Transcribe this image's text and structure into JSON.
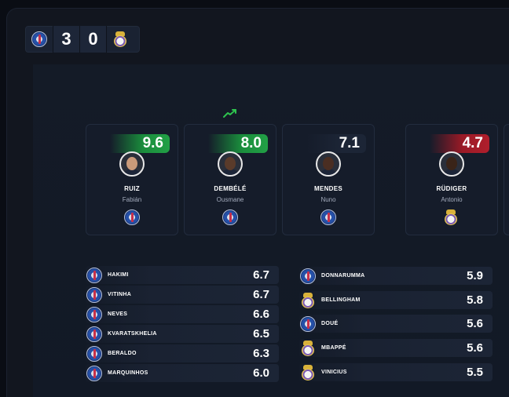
{
  "scoreboard": {
    "home_team": "psg-crest",
    "home_score": "3",
    "away_score": "0",
    "away_team": "real-madrid-crest"
  },
  "highlight_cards": [
    {
      "rating": "9.6",
      "level": "high",
      "last_name": "RUIZ",
      "first_name": "Fabián",
      "club": "psg"
    },
    {
      "rating": "8.0",
      "level": "high",
      "last_name": "DEMBÉLÉ",
      "first_name": "Ousmane",
      "club": "psg",
      "trend": "up-trend-icon"
    },
    {
      "rating": "7.1",
      "level": "mid",
      "last_name": "MENDES",
      "first_name": "Nuno",
      "club": "psg"
    },
    {
      "rating": "4.7",
      "level": "low",
      "last_name": "RÜDIGER",
      "first_name": "Antonio",
      "club": "real-madrid"
    }
  ],
  "left_list": [
    {
      "name": "HAKIMI",
      "rating": "6.7",
      "club": "psg"
    },
    {
      "name": "VITINHA",
      "rating": "6.7",
      "club": "psg"
    },
    {
      "name": "NEVES",
      "rating": "6.6",
      "club": "psg"
    },
    {
      "name": "KVARATSKHELIA",
      "rating": "6.5",
      "club": "psg"
    },
    {
      "name": "BERALDO",
      "rating": "6.3",
      "club": "psg"
    },
    {
      "name": "MARQUINHOS",
      "rating": "6.0",
      "club": "psg"
    }
  ],
  "right_list": [
    {
      "name": "DONNARUMMA",
      "rating": "5.9",
      "club": "psg"
    },
    {
      "name": "BELLINGHAM",
      "rating": "5.8",
      "club": "real-madrid"
    },
    {
      "name": "DOUÉ",
      "rating": "5.6",
      "club": "psg"
    },
    {
      "name": "MBAPPÉ",
      "rating": "5.6",
      "club": "real-madrid"
    },
    {
      "name": "VINICIUS",
      "rating": "5.5",
      "club": "real-madrid"
    }
  ],
  "colors": {
    "high": "#22a046",
    "low": "#b01e2c",
    "trend": "#2ec24e"
  }
}
